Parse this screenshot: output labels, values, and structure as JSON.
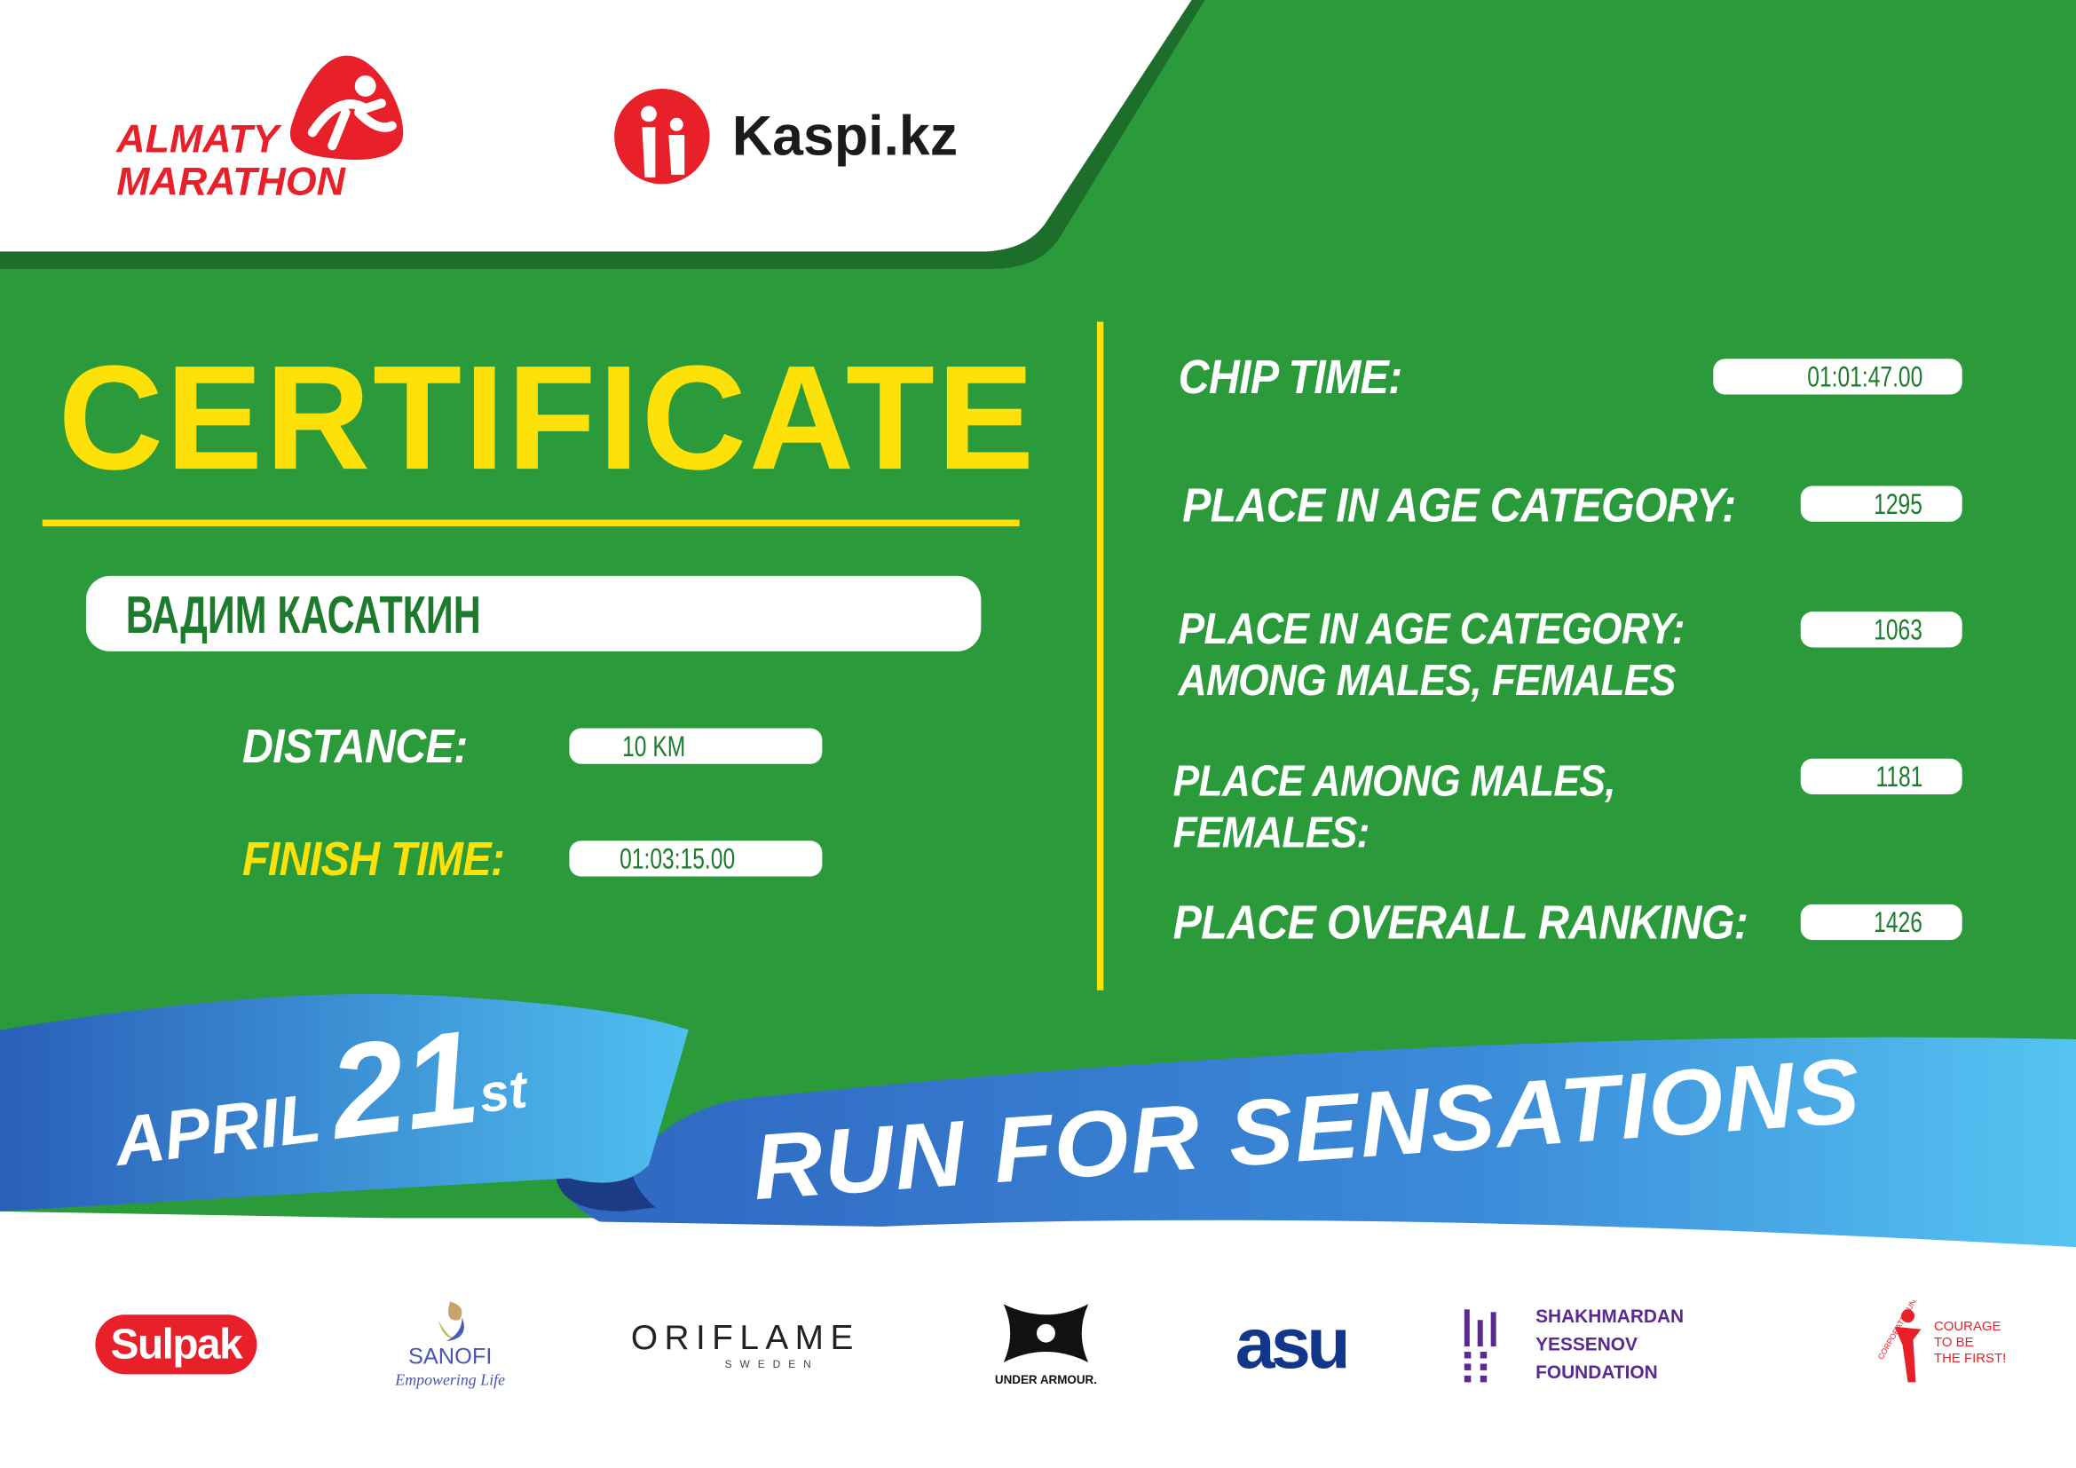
{
  "header": {
    "organizer_logo": "ALMATY MARATHON",
    "organizer_logo_lines": [
      "ALMATY",
      "MARATHON"
    ],
    "sponsor_logo": "Kaspi.kz"
  },
  "certificate": {
    "title": "CERTIFICATE",
    "participant_name": "ВАДИМ КАСАТКИН",
    "distance_label": "DISTANCE:",
    "distance_value": "10 KM",
    "finish_time_label": "FINISH TIME:",
    "finish_time_value": "01:03:15.00"
  },
  "results": {
    "chip_time_label": "CHIP TIME:",
    "chip_time_value": "01:01:47.00",
    "age_category_label": "PLACE IN AGE CATEGORY:",
    "age_category_value": "1295",
    "age_category_gender_label_1": "PLACE IN AGE CATEGORY:",
    "age_category_gender_label_2": "AMONG MALES, FEMALES",
    "age_category_gender_value": "1063",
    "gender_label_1": "PLACE AMONG MALES,",
    "gender_label_2": "FEMALES:",
    "gender_value": "1181",
    "overall_label": "PLACE OVERALL RANKING:",
    "overall_value": "1426"
  },
  "banner": {
    "month": "APRIL",
    "day": "21",
    "suffix": "st",
    "slogan": "RUN FOR SENSATIONS"
  },
  "sponsors": {
    "sulpak": "Sulpak",
    "sanofi": "SANOFI",
    "sanofi_tagline": "Empowering Life",
    "oriflame": "ORIFLAME",
    "oriflame_sub": "SWEDEN",
    "under_armour": "UNDER ARMOUR.",
    "asu": "asu",
    "yessenov_1": "SHAKHMARDAN YESSENOV",
    "yessenov_2": "FOUNDATION",
    "courage_fund": "CORPORATE FUND",
    "courage_1": "COURAGE",
    "courage_2": "TO BE",
    "courage_3": "THE FIRST!"
  },
  "colors": {
    "background_green": "#2a9a3b",
    "title_yellow": "#ffe10a",
    "brand_red": "#e8202a",
    "ribbon_blue": "#2f6fc4",
    "ribbon_light_blue": "#4fc0f0"
  }
}
